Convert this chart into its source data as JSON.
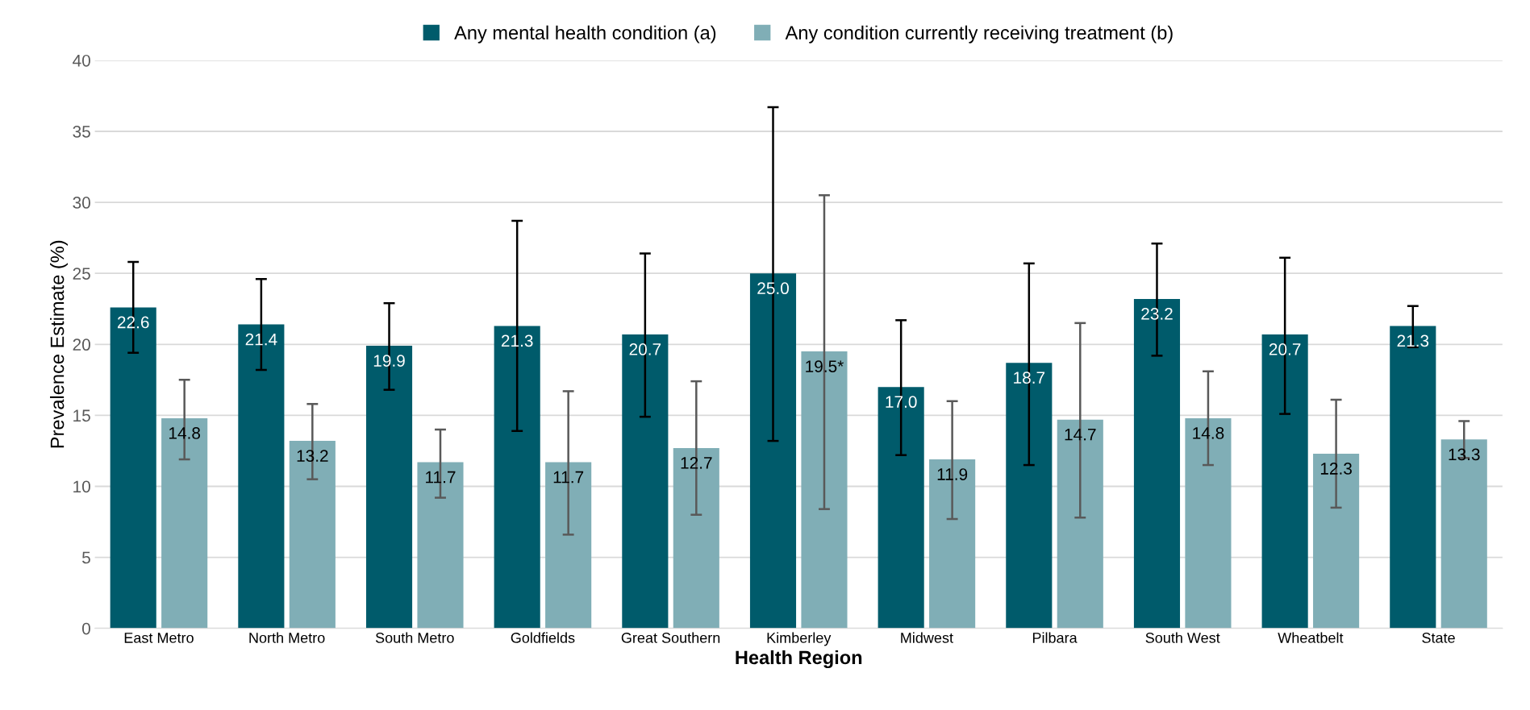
{
  "chart_data": {
    "type": "bar",
    "xlabel": "Health Region",
    "ylabel": "Prevalence Estimate (%)",
    "categories": [
      "East Metro",
      "North Metro",
      "South Metro",
      "Goldfields",
      "Great Southern",
      "Kimberley",
      "Midwest",
      "Pilbara",
      "South West",
      "Wheatbelt",
      "State"
    ],
    "series": [
      {
        "name": "Any mental health condition (a)",
        "color": "#005b6b",
        "values": [
          22.6,
          21.4,
          19.9,
          21.3,
          20.7,
          25.0,
          17.0,
          18.7,
          23.2,
          20.7,
          21.3
        ],
        "value_labels": [
          "22.6",
          "21.4",
          "19.9",
          "21.3",
          "20.7",
          "25.0",
          "17.0",
          "18.7",
          "23.2",
          "20.7",
          "21.3"
        ],
        "errors": [
          [
            19.4,
            25.8
          ],
          [
            18.2,
            24.6
          ],
          [
            16.8,
            22.9
          ],
          [
            13.9,
            28.7
          ],
          [
            14.9,
            26.4
          ],
          [
            13.2,
            36.7
          ],
          [
            12.2,
            21.7
          ],
          [
            11.5,
            25.7
          ],
          [
            19.2,
            27.1
          ],
          [
            15.1,
            26.1
          ],
          [
            19.8,
            22.7
          ]
        ]
      },
      {
        "name": "Any condition currently receiving treatment (b)",
        "color": "#80aeb6",
        "values": [
          14.8,
          13.2,
          11.7,
          11.7,
          12.7,
          19.5,
          11.9,
          14.7,
          14.8,
          12.3,
          13.3
        ],
        "value_labels": [
          "14.8",
          "13.2",
          "11.7",
          "11.7",
          "12.7",
          "19.5*",
          "11.9",
          "14.7",
          "14.8",
          "12.3",
          "13.3"
        ],
        "errors": [
          [
            11.9,
            17.5
          ],
          [
            10.5,
            15.8
          ],
          [
            9.2,
            14.0
          ],
          [
            6.6,
            16.7
          ],
          [
            8.0,
            17.4
          ],
          [
            8.4,
            30.5
          ],
          [
            7.7,
            16.0
          ],
          [
            7.8,
            21.5
          ],
          [
            11.5,
            18.1
          ],
          [
            8.5,
            16.1
          ],
          [
            12.0,
            14.6
          ]
        ]
      }
    ],
    "ylim": [
      0,
      40
    ],
    "yticks": [
      0,
      5,
      10,
      15,
      20,
      25,
      30,
      35,
      40
    ],
    "grid": "y",
    "legend": "top"
  }
}
